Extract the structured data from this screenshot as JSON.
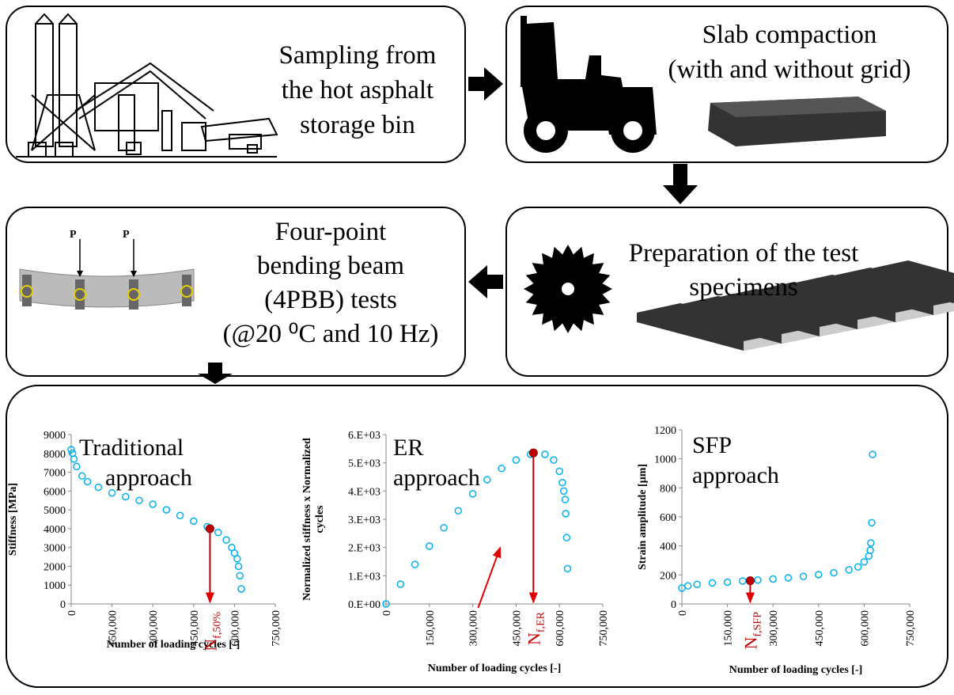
{
  "steps": [
    {
      "lines": [
        "Sampling from",
        "the hot asphalt",
        "storage bin"
      ]
    },
    {
      "lines": [
        "Slab compaction",
        "(with and without grid)"
      ]
    },
    {
      "lines": [
        "Preparation of the test",
        "specimens"
      ]
    },
    {
      "lines": [
        "Four-point",
        "bending beam",
        "(4PBB) tests",
        "(@20 ⁰C and 10 Hz)"
      ]
    }
  ],
  "beam_test": {
    "load_labels": [
      "P",
      "P"
    ]
  },
  "chart_data": [
    {
      "type": "scatter",
      "title": [
        "Traditional",
        "approach"
      ],
      "y_label": [
        "Stiffness [MPa]"
      ],
      "x_label": "Number of loading cycles [-]",
      "color": "#00b0f0",
      "highlight_color": "#c00000",
      "x": [
        0,
        5000,
        10000,
        20000,
        40000,
        60000,
        100000,
        150000,
        200000,
        250000,
        300000,
        350000,
        400000,
        450000,
        500000,
        540000,
        570000,
        590000,
        600000,
        610000,
        615000,
        620000,
        625000
      ],
      "values": [
        8200,
        8000,
        7700,
        7300,
        6800,
        6500,
        6200,
        5900,
        5700,
        5500,
        5300,
        5000,
        4700,
        4400,
        4100,
        3800,
        3400,
        3000,
        2700,
        2400,
        2000,
        1500,
        800
      ],
      "highlight": {
        "x": 510000,
        "y": 4000
      },
      "annotation": {
        "text": "N",
        "sub": "f,50%"
      },
      "xlim": [
        0,
        750000
      ],
      "xticks": [
        0,
        {
          "value": 150000,
          "label": "150,000"
        },
        {
          "value": 300000,
          "label": "300,000"
        },
        {
          "value": 450000,
          "label": "450,000"
        },
        {
          "value": 600000,
          "label": "600,000"
        },
        {
          "value": 750000,
          "label": "750,000"
        }
      ],
      "ylim": [
        0,
        9000
      ],
      "yticks": [
        0,
        1000,
        2000,
        3000,
        4000,
        5000,
        6000,
        7000,
        8000,
        9000
      ]
    },
    {
      "type": "scatter",
      "title": [
        "ER",
        "approach"
      ],
      "y_label": [
        "Normalized stiffness x Normalized",
        "cycles"
      ],
      "x_label": "Number of loading cycles [-]",
      "color": "#00b0f0",
      "highlight_color": "#c00000",
      "x": [
        0,
        50000,
        100000,
        150000,
        200000,
        250000,
        300000,
        350000,
        400000,
        450000,
        500000,
        550000,
        580000,
        600000,
        610000,
        615000,
        620000,
        622000,
        625000,
        628000
      ],
      "values": [
        0,
        700,
        1400,
        2050,
        2700,
        3300,
        3900,
        4400,
        4800,
        5100,
        5300,
        5300,
        5100,
        4700,
        4300,
        4000,
        3700,
        3200,
        2350,
        1250
      ],
      "highlight": {
        "x": 510000,
        "y": 5350
      },
      "annotation": {
        "text": "N",
        "sub": "f,ER"
      },
      "xlim": [
        0,
        750000
      ],
      "xticks": [
        0,
        {
          "value": 150000,
          "label": "150,000"
        },
        {
          "value": 300000,
          "label": "300,000"
        },
        {
          "value": 450000,
          "label": "450,000"
        },
        {
          "value": 600000,
          "label": "600,000"
        },
        {
          "value": 750000,
          "label": "750,000"
        }
      ],
      "ylim": [
        0,
        6000
      ],
      "yticks": [
        {
          "value": 0,
          "label": "0.E+00"
        },
        {
          "value": 1000,
          "label": "1.E+03"
        },
        {
          "value": 2000,
          "label": "2.E+03"
        },
        {
          "value": 3000,
          "label": "3.E+03"
        },
        {
          "value": 4000,
          "label": "4.E+03"
        },
        {
          "value": 5000,
          "label": "5.E+03"
        },
        {
          "value": 6000,
          "label": "6.E+03"
        }
      ]
    },
    {
      "type": "scatter",
      "title": [
        "SFP",
        "approach"
      ],
      "y_label": [
        "Strain amplitude [µm]"
      ],
      "x_label": "Number of loading cycles [-]",
      "color": "#00b0f0",
      "highlight_color": "#c00000",
      "x": [
        0,
        20000,
        50000,
        100000,
        150000,
        200000,
        250000,
        300000,
        350000,
        400000,
        450000,
        500000,
        550000,
        580000,
        600000,
        615000,
        620000,
        622000,
        625000,
        628000
      ],
      "values": [
        110,
        125,
        135,
        145,
        150,
        158,
        165,
        172,
        180,
        190,
        202,
        215,
        235,
        255,
        290,
        330,
        370,
        420,
        560,
        1030
      ],
      "highlight": {
        "x": 225000,
        "y": 160
      },
      "annotation": {
        "text": "N",
        "sub": "f,SFP"
      },
      "xlim": [
        0,
        750000
      ],
      "xticks": [
        0,
        {
          "value": 150000,
          "label": "150,000"
        },
        {
          "value": 300000,
          "label": "300,000"
        },
        {
          "value": 450000,
          "label": "450,000"
        },
        {
          "value": 600000,
          "label": "600,000"
        },
        {
          "value": 750000,
          "label": "750,000"
        }
      ],
      "ylim": [
        0,
        1200
      ],
      "yticks": [
        0,
        200,
        400,
        600,
        800,
        1000,
        1200
      ]
    }
  ]
}
